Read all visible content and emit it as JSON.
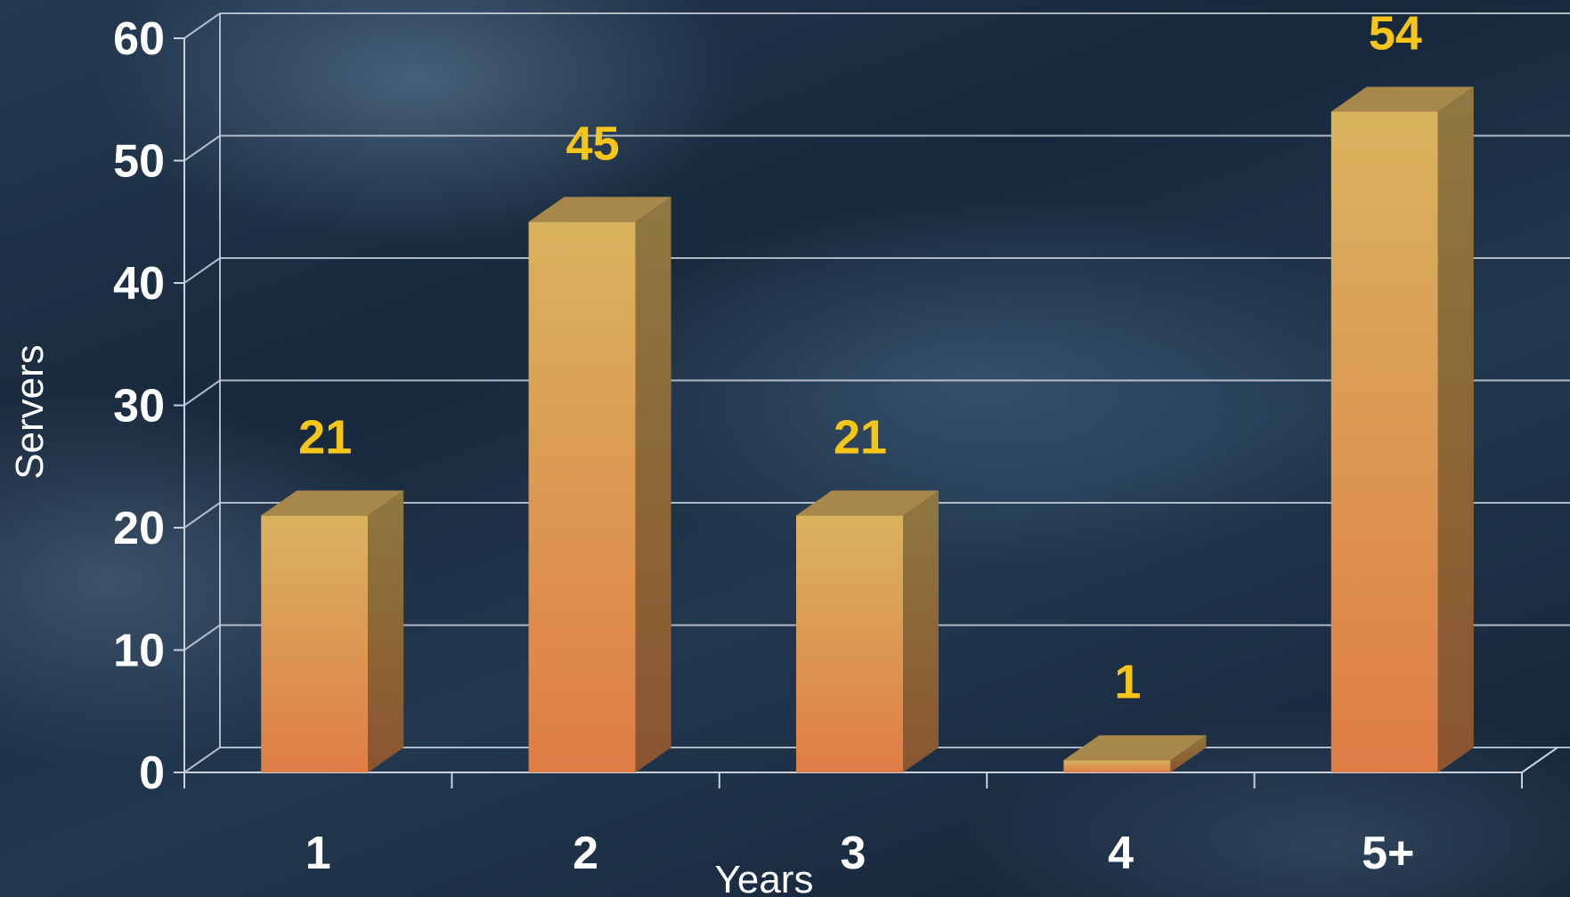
{
  "colors": {
    "bar_front_top": "#d9b35e",
    "bar_front_bottom": "#df7d47",
    "bar_side": "#8e6837",
    "bar_top": "#a8874a",
    "data_label": "#f5c518",
    "axis_text": "#ffffff",
    "grid": "#c9d2dc"
  },
  "chart_data": {
    "type": "bar",
    "categories": [
      "1",
      "2",
      "3",
      "4",
      "5+"
    ],
    "values": [
      21,
      45,
      21,
      1,
      54
    ],
    "data_labels": [
      "21",
      "45",
      "21",
      "1",
      "54"
    ],
    "xlabel": "Years",
    "ylabel": "Servers",
    "ylim": [
      0,
      60
    ],
    "yticks": [
      "0",
      "10",
      "20",
      "30",
      "40",
      "50",
      "60"
    ],
    "grid": true,
    "style": "3d"
  }
}
